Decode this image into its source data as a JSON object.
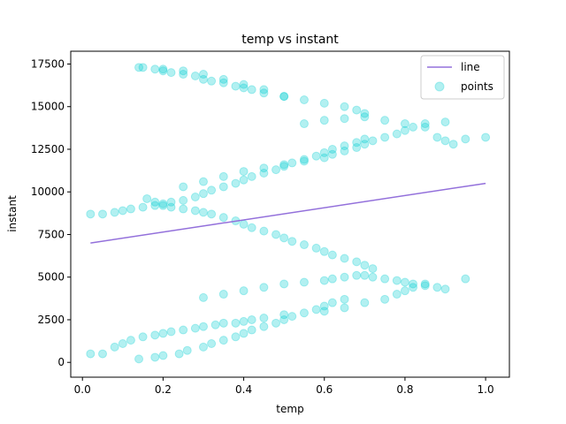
{
  "chart_data": {
    "type": "scatter",
    "title": "temp vs instant",
    "xlabel": "temp",
    "ylabel": "instant",
    "xlim": [
      -0.029,
      1.059
    ],
    "ylim": [
      -869,
      18250
    ],
    "xticks": [
      "0.0",
      "0.2",
      "0.4",
      "0.6",
      "0.8",
      "1.0"
    ],
    "xtick_values": [
      0.0,
      0.2,
      0.4,
      0.6,
      0.8,
      1.0
    ],
    "yticks": [
      "0",
      "2500",
      "5000",
      "7500",
      "10000",
      "12500",
      "15000",
      "17500"
    ],
    "ytick_values": [
      0,
      2500,
      5000,
      7500,
      10000,
      12500,
      15000,
      17500
    ],
    "grid": false,
    "legend_position": "top-right",
    "series": [
      {
        "name": "line",
        "kind": "line",
        "color": "#9370db",
        "x": [
          0.02,
          1.0
        ],
        "y": [
          7000,
          10500
        ]
      },
      {
        "name": "points",
        "kind": "scatter",
        "color": "#00ced1",
        "alpha": 0.3,
        "x": [
          0.02,
          0.05,
          0.08,
          0.1,
          0.12,
          0.15,
          0.18,
          0.2,
          0.22,
          0.25,
          0.28,
          0.3,
          0.33,
          0.35,
          0.38,
          0.4,
          0.42,
          0.45,
          0.5,
          0.14,
          0.18,
          0.2,
          0.24,
          0.26,
          0.3,
          0.32,
          0.35,
          0.38,
          0.4,
          0.42,
          0.45,
          0.48,
          0.5,
          0.52,
          0.55,
          0.58,
          0.6,
          0.62,
          0.65,
          0.3,
          0.35,
          0.4,
          0.45,
          0.5,
          0.55,
          0.6,
          0.62,
          0.65,
          0.68,
          0.7,
          0.72,
          0.75,
          0.78,
          0.8,
          0.82,
          0.85,
          0.88,
          0.9,
          0.95,
          0.6,
          0.65,
          0.7,
          0.75,
          0.78,
          0.8,
          0.82,
          0.85,
          0.72,
          0.7,
          0.68,
          0.65,
          0.62,
          0.6,
          0.58,
          0.55,
          0.52,
          0.5,
          0.48,
          0.45,
          0.42,
          0.4,
          0.38,
          0.35,
          0.32,
          0.3,
          0.28,
          0.25,
          0.22,
          0.2,
          0.18,
          0.16,
          0.02,
          0.05,
          0.08,
          0.1,
          0.12,
          0.15,
          0.18,
          0.2,
          0.22,
          0.25,
          0.28,
          0.3,
          0.32,
          0.35,
          0.38,
          0.4,
          0.42,
          0.45,
          0.48,
          0.5,
          0.52,
          0.55,
          0.58,
          0.6,
          0.62,
          0.65,
          0.68,
          0.7,
          0.25,
          0.3,
          0.35,
          0.4,
          0.45,
          0.5,
          0.55,
          0.6,
          0.62,
          0.65,
          0.68,
          0.7,
          0.72,
          0.75,
          0.78,
          0.8,
          0.82,
          0.85,
          0.88,
          0.9,
          0.92,
          0.95,
          1.0,
          0.55,
          0.6,
          0.65,
          0.7,
          0.75,
          0.8,
          0.85,
          0.9,
          0.7,
          0.68,
          0.65,
          0.6,
          0.55,
          0.5,
          0.45,
          0.42,
          0.4,
          0.38,
          0.35,
          0.32,
          0.3,
          0.28,
          0.25,
          0.22,
          0.2,
          0.18,
          0.15,
          0.14,
          0.2,
          0.25,
          0.3,
          0.35,
          0.4,
          0.45,
          0.5
        ],
        "y": [
          500,
          500,
          900,
          1100,
          1300,
          1500,
          1600,
          1700,
          1800,
          1900,
          2000,
          2100,
          2200,
          2300,
          2300,
          2400,
          2500,
          2600,
          2800,
          200,
          300,
          400,
          500,
          700,
          900,
          1100,
          1300,
          1500,
          1700,
          1900,
          2100,
          2300,
          2500,
          2700,
          2900,
          3100,
          3300,
          3500,
          3700,
          3800,
          4000,
          4200,
          4400,
          4600,
          4700,
          4800,
          4900,
          5000,
          5100,
          5100,
          5000,
          4900,
          4800,
          4700,
          4600,
          4500,
          4400,
          4300,
          4900,
          3000,
          3200,
          3500,
          3700,
          4000,
          4200,
          4400,
          4600,
          5500,
          5700,
          5900,
          6100,
          6300,
          6500,
          6700,
          6900,
          7100,
          7300,
          7500,
          7700,
          7900,
          8100,
          8300,
          8500,
          8700,
          8800,
          8900,
          9000,
          9100,
          9200,
          9400,
          9600,
          8700,
          8700,
          8800,
          8900,
          9000,
          9100,
          9200,
          9300,
          9400,
          9500,
          9700,
          9900,
          10100,
          10300,
          10500,
          10700,
          10900,
          11100,
          11300,
          11500,
          11700,
          11900,
          12100,
          12300,
          12500,
          12700,
          12900,
          13100,
          10300,
          10600,
          10900,
          11200,
          11400,
          11600,
          11800,
          12000,
          12200,
          12400,
          12600,
          12800,
          13000,
          13200,
          13400,
          13600,
          13800,
          14000,
          13200,
          13000,
          12800,
          13100,
          13200,
          14000,
          14200,
          14300,
          14400,
          14200,
          14000,
          13800,
          14100,
          14600,
          14800,
          15000,
          15200,
          15400,
          15600,
          15800,
          16000,
          16100,
          16200,
          16400,
          16500,
          16600,
          16800,
          16900,
          17000,
          17100,
          17200,
          17300,
          17300,
          17200,
          17100,
          16900,
          16600,
          16300,
          16000,
          15600
        ]
      }
    ]
  }
}
